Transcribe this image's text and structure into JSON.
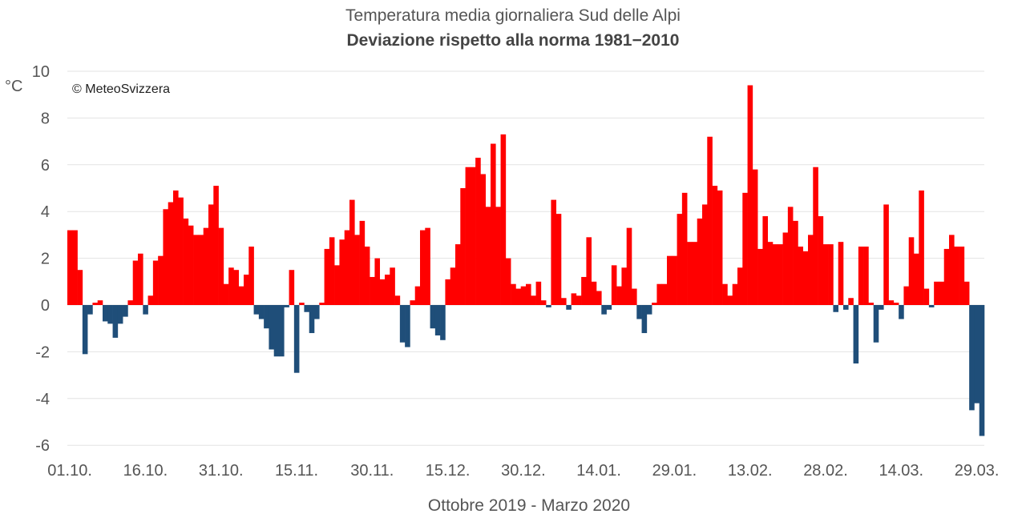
{
  "chart_data": {
    "type": "bar",
    "title": "Temperatura media giornaliera Sud delle Alpi",
    "subtitle": "Deviazione rispetto alla norma 1981−2010",
    "ylabel": "°C",
    "xlabel": "Ottobre 2019 - Marzo 2020",
    "annotation": "© MeteoSvizzera",
    "ylim": [
      -6,
      10
    ],
    "yticks": [
      -6,
      -4,
      -2,
      0,
      2,
      4,
      6,
      8,
      10
    ],
    "xtick_labels": [
      "01.10.",
      "16.10.",
      "31.10.",
      "15.11.",
      "30.11.",
      "15.12.",
      "30.12.",
      "14.01.",
      "29.01.",
      "13.02.",
      "28.02.",
      "14.03.",
      "29.03."
    ],
    "grid": true,
    "colors": {
      "positive": "#ff0000",
      "negative": "#1f4e79"
    },
    "values": [
      3.2,
      3.2,
      1.5,
      -2.1,
      -0.4,
      0.1,
      0.2,
      -0.7,
      -0.8,
      -1.4,
      -0.8,
      -0.5,
      0.2,
      1.9,
      2.2,
      -0.4,
      0.4,
      1.9,
      2.1,
      4.1,
      4.4,
      4.9,
      4.6,
      3.7,
      3.4,
      3.0,
      3.0,
      3.3,
      4.3,
      5.1,
      3.3,
      0.9,
      1.6,
      1.5,
      0.8,
      1.3,
      2.5,
      -0.4,
      -0.6,
      -1.0,
      -1.9,
      -2.2,
      -2.2,
      -0.1,
      1.5,
      -2.9,
      0.1,
      -0.3,
      -1.2,
      -0.6,
      0.1,
      2.4,
      2.9,
      1.7,
      2.8,
      3.2,
      4.5,
      3.0,
      3.6,
      2.5,
      1.2,
      2.0,
      1.1,
      1.3,
      1.6,
      0.4,
      -1.6,
      -1.8,
      0.2,
      0.8,
      3.2,
      3.3,
      -1.0,
      -1.3,
      -1.5,
      1.1,
      1.6,
      2.6,
      5.0,
      5.9,
      5.9,
      6.3,
      5.6,
      4.2,
      6.9,
      4.2,
      7.3,
      2.0,
      0.9,
      0.7,
      0.8,
      0.9,
      0.4,
      1.0,
      0.2,
      -0.1,
      4.5,
      3.9,
      0.3,
      -0.2,
      0.5,
      0.4,
      1.2,
      2.9,
      1.0,
      0.6,
      -0.4,
      -0.2,
      1.7,
      0.8,
      1.6,
      3.3,
      0.7,
      -0.6,
      -1.2,
      -0.4,
      0.1,
      0.9,
      0.9,
      2.1,
      2.1,
      3.9,
      4.8,
      2.7,
      2.7,
      3.7,
      4.3,
      7.2,
      5.1,
      4.9,
      0.9,
      0.4,
      0.9,
      1.6,
      4.8,
      9.4,
      5.8,
      2.4,
      3.8,
      2.7,
      2.6,
      2.6,
      3.1,
      4.2,
      3.6,
      2.5,
      2.3,
      3.0,
      5.9,
      3.8,
      2.6,
      2.6,
      -0.3,
      2.7,
      -0.2,
      0.3,
      -2.5,
      2.5,
      2.5,
      0.1,
      -1.6,
      -0.2,
      4.3,
      0.2,
      0.1,
      -0.6,
      0.8,
      2.9,
      2.2,
      4.9,
      0.7,
      -0.1,
      1.0,
      1.0,
      2.4,
      3.0,
      2.5,
      2.5,
      1.0,
      -4.5,
      -4.2,
      -5.6
    ]
  }
}
